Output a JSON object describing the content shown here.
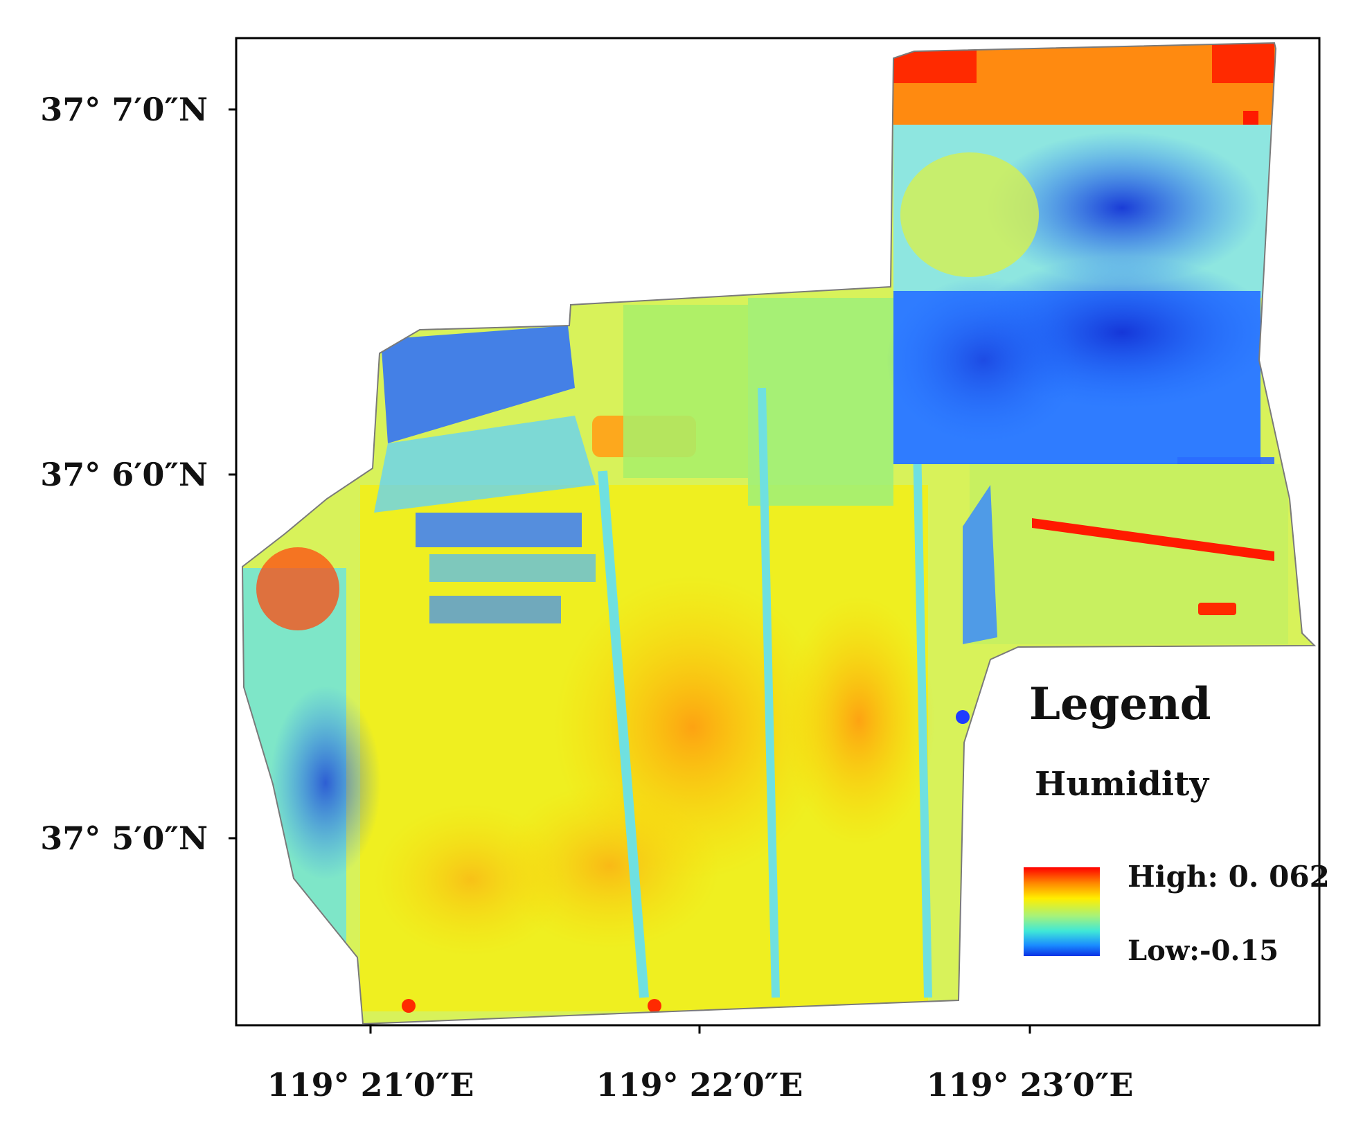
{
  "map": {
    "legend": {
      "title": "Legend",
      "subtitle": "Humidity",
      "high_label": "High: 0. 062",
      "low_label": "Low:-0.15",
      "high_value": 0.062,
      "low_value": -0.15,
      "ramp_colors": [
        "#ff0000",
        "#ff8800",
        "#ffee00",
        "#a6f27a",
        "#3fe8d8",
        "#1a8cff",
        "#0a32e6"
      ]
    },
    "latitude_ticks": [
      "37° 7′0″N",
      "37° 6′0″N",
      "37° 5′0″N"
    ],
    "longitude_ticks": [
      "119° 21′0″E",
      "119° 22′0″E",
      "119° 23′0″E"
    ],
    "colors": {
      "high": "#ff1a00",
      "orange": "#ffa31a",
      "yellow": "#f6f200",
      "light-green": "#b8f27a",
      "cyan": "#4fe6e6",
      "blue": "#1e6cff",
      "deep-blue": "#1433d6"
    }
  }
}
